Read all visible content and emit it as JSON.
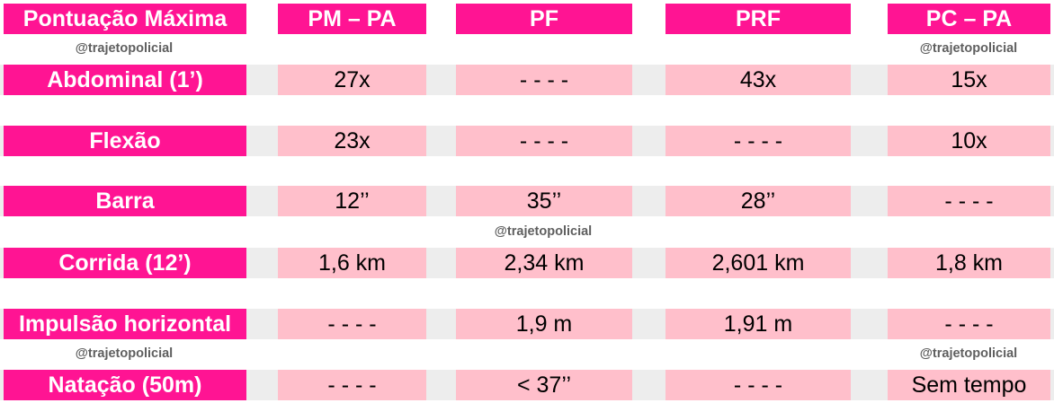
{
  "header": {
    "title": "Pontuação Máxima",
    "columns": [
      "PM – PA",
      "PF",
      "PRF",
      "PC – PA"
    ]
  },
  "rows": [
    {
      "label": "Abdominal (1’)",
      "values": [
        "27x",
        "- - - -",
        "43x",
        "15x"
      ]
    },
    {
      "label": "Flexão",
      "values": [
        "23x",
        "- - - -",
        "- - - -",
        "10x"
      ]
    },
    {
      "label": "Barra",
      "values": [
        "12’’",
        "35’’",
        "28’’",
        "- - - -"
      ]
    },
    {
      "label": "Corrida (12’)",
      "values": [
        "1,6 km",
        "2,34 km",
        "2,601 km",
        "1,8 km"
      ]
    },
    {
      "label": "Impulsão horizontal",
      "values": [
        "- - - -",
        "1,9 m",
        "1,91 m",
        "- - - -"
      ]
    },
    {
      "label": "Natação (50m)",
      "values": [
        "- - - -",
        "< 37’’",
        "- - - -",
        "Sem tempo"
      ]
    }
  ],
  "watermark": "@trajetopolicial",
  "colors": {
    "header_bg": "#ff1493",
    "cell_bg": "#ffbfcb",
    "band_bg": "#ededed",
    "header_text": "#ffffff"
  }
}
